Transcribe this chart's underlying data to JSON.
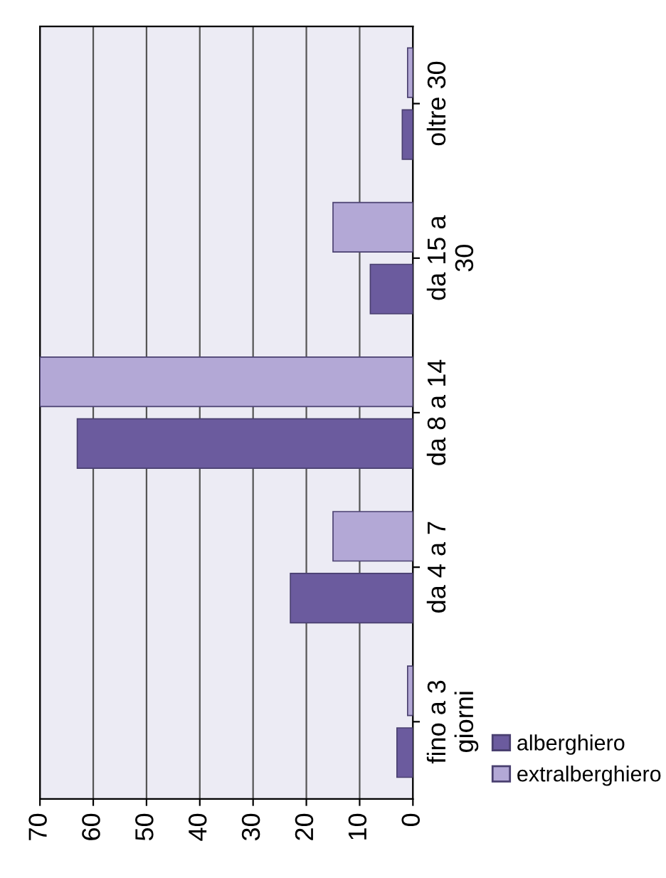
{
  "chart_data": {
    "type": "bar",
    "orientation": "horizontal",
    "categories": [
      "oltre 30",
      "da 15 a\n30",
      "da 8 a 14",
      "da 4 a 7",
      "fino a 3\ngiorni"
    ],
    "series": [
      {
        "name": "alberghiero",
        "color": "#6b5b9e",
        "values": [
          2,
          8,
          63,
          23,
          3
        ]
      },
      {
        "name": "extralberghiero",
        "color": "#b3a8d6",
        "values": [
          1,
          15,
          70,
          15,
          1
        ]
      }
    ],
    "xlim": [
      70,
      0
    ],
    "xticks": [
      0,
      10,
      20,
      30,
      40,
      50,
      60,
      70
    ],
    "grid": "x",
    "legend": "right"
  }
}
